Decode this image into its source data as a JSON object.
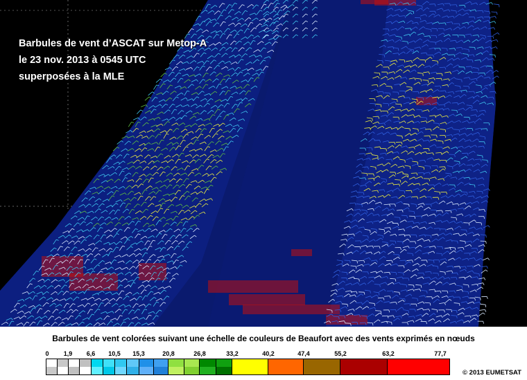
{
  "title_lines": [
    "Barbules de vent d’ASCAT sur Metop-A",
    "le 23 nov. 2013 à 0545 UTC",
    "superposées à la MLE"
  ],
  "legend": {
    "caption": "Barbules de vent colorées suivant une échelle de couleurs de Beaufort avec des vents exprimés en nœuds",
    "ticks": [
      "0",
      "1,9",
      "6,6",
      "10,5",
      "15,3",
      "20,8",
      "26,8",
      "33,2",
      "40,2",
      "47,4",
      "55,2",
      "63,2",
      "77,7"
    ],
    "classes": [
      {
        "from": "0",
        "to": "1,9",
        "colors": [
          "#ffffff",
          "#c8c8c8"
        ]
      },
      {
        "from": "1,9",
        "to": "6,6",
        "colors": [
          "#c0c0c0",
          "#ffffff"
        ]
      },
      {
        "from": "6,6",
        "to": "10,5",
        "colors": [
          "#00d8f0",
          "#60f0ff"
        ]
      },
      {
        "from": "10,5",
        "to": "15,3",
        "colors": [
          "#30c8f0",
          "#70d8ff"
        ]
      },
      {
        "from": "15,3",
        "to": "20,8",
        "colors": [
          "#2090e8",
          "#60b0f8"
        ]
      },
      {
        "from": "20,8",
        "to": "26,8",
        "colors": [
          "#90e040",
          "#c0f060"
        ]
      },
      {
        "from": "26,8",
        "to": "33,2",
        "colors": [
          "#008800",
          "#20b020"
        ]
      },
      {
        "from": "33,2",
        "to": "40,2",
        "colors": [
          "#ffff00",
          "#ffff00"
        ]
      },
      {
        "from": "40,2",
        "to": "47,4",
        "colors": [
          "#ff6600",
          "#ff6600"
        ]
      },
      {
        "from": "47,4",
        "to": "55,2",
        "colors": [
          "#996600",
          "#996600"
        ]
      },
      {
        "from": "55,2",
        "to": "63,2",
        "colors": [
          "#aa0000",
          "#aa0000"
        ]
      },
      {
        "from": "63,2",
        "to": "77,7",
        "colors": [
          "#ff0000",
          "#ff0000"
        ]
      }
    ]
  },
  "copyright": "© 2013 EUMETSAT",
  "colors": {
    "background": "#000000",
    "swath_sea": "#0a1a6e",
    "barb_white": "#d8e8ff",
    "barb_cyan": "#40c8f0",
    "barb_blue": "#3060e0",
    "barb_green": "#60c040",
    "barb_yellow": "#f0f040",
    "rain_red": "#c01010"
  }
}
